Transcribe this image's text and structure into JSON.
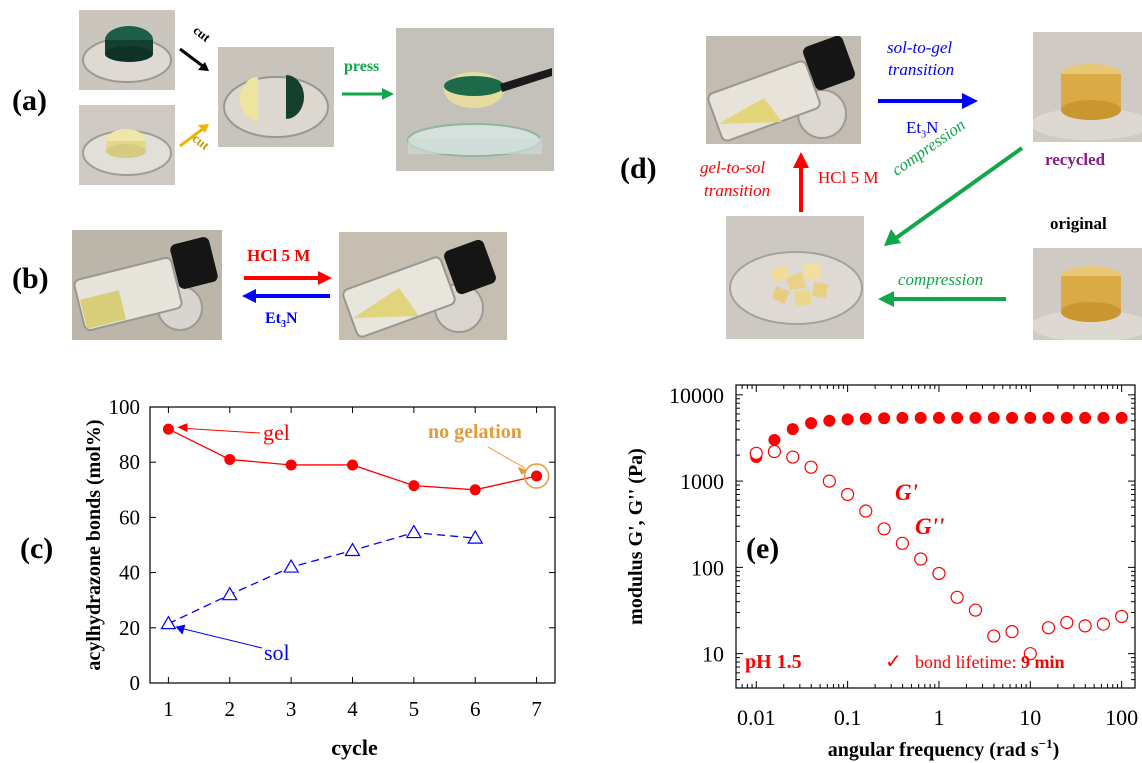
{
  "panels": {
    "a": {
      "label": "(a)",
      "cut_top": "cut",
      "cut_bottom": "cut",
      "press": "press",
      "colors": {
        "cut_top": "#000000",
        "cut_bottom": "#f0b400",
        "press": "#12a64a"
      }
    },
    "b": {
      "label": "(b)",
      "forward": "HCl 5 M",
      "reverse_prefix": "Et",
      "reverse_sub": "3",
      "reverse_suffix": "N",
      "colors": {
        "forward": "#ff0000",
        "reverse": "#0000ff"
      }
    },
    "d": {
      "label": "(d)",
      "sol_to_gel_1": "sol-to-gel",
      "sol_to_gel_2": "transition",
      "et3n_prefix": "Et",
      "et3n_sub": "3",
      "et3n_suffix": "N",
      "recycled": "recycled",
      "original": "original",
      "gel_to_sol_1": "gel-to-sol",
      "gel_to_sol_2": "transition",
      "hcl": "HCl 5 M",
      "compression_diag": "compression",
      "compression_bottom": "compression",
      "colors": {
        "blue": "#0000ff",
        "red": "#ff0000",
        "green": "#12a64a",
        "recycled": "#8b1a8b"
      }
    }
  },
  "chart_data": [
    {
      "panel_label": "(c)",
      "type": "line",
      "xlabel": "cycle",
      "ylabel": "acylhydrazone bonds (mol%)",
      "xlim": [
        0.7,
        7.3
      ],
      "ylim": [
        0,
        100
      ],
      "x_ticks": [
        "1",
        "2",
        "3",
        "4",
        "5",
        "6",
        "7"
      ],
      "y_ticks": [
        "0",
        "20",
        "40",
        "60",
        "80",
        "100"
      ],
      "grid": false,
      "series": [
        {
          "name": "gel",
          "color": "#ff0000",
          "marker": "filled-circle",
          "line": "solid",
          "x": [
            1,
            2,
            3,
            4,
            5,
            6,
            7
          ],
          "y": [
            92,
            81,
            79,
            79,
            71.5,
            70,
            75
          ]
        },
        {
          "name": "sol",
          "color": "#0000ff",
          "marker": "open-triangle",
          "line": "dashed",
          "x": [
            1,
            2,
            3,
            4,
            5,
            6
          ],
          "y": [
            21.5,
            32,
            42,
            48,
            54.5,
            52.5
          ]
        }
      ],
      "annotations": {
        "gel": "gel",
        "sol": "sol",
        "no_gelation": "no gelation",
        "no_gelation_color": "#e69a3a"
      }
    },
    {
      "panel_label": "(e)",
      "type": "scatter",
      "xlabel": "angular frequency (rad s",
      "xlabel_sup": "−1",
      "xlabel_end": ")",
      "ylabel": "modulus G', G'' (Pa)",
      "xscale": "log",
      "yscale": "log",
      "xlim": [
        0.006,
        140
      ],
      "ylim": [
        4,
        13000
      ],
      "x_ticks": [
        "0.01",
        "0.1",
        "1",
        "10",
        "100"
      ],
      "y_ticks": [
        "10",
        "100",
        "1000",
        "10000"
      ],
      "grid": false,
      "series": [
        {
          "name": "G'",
          "color": "#ff0000",
          "marker": "filled-circle",
          "x": [
            0.01,
            0.0158,
            0.0251,
            0.0398,
            0.0631,
            0.1,
            0.158,
            0.251,
            0.398,
            0.631,
            1,
            1.58,
            2.51,
            3.98,
            6.31,
            10,
            15.8,
            25.1,
            39.8,
            63.1,
            100
          ],
          "y": [
            1900,
            3000,
            4000,
            4700,
            5000,
            5200,
            5300,
            5350,
            5400,
            5400,
            5400,
            5400,
            5400,
            5400,
            5400,
            5400,
            5400,
            5400,
            5400,
            5400,
            5400
          ]
        },
        {
          "name": "G''",
          "color": "#ff0000",
          "marker": "open-circle",
          "x": [
            0.01,
            0.0158,
            0.0251,
            0.0398,
            0.0631,
            0.1,
            0.158,
            0.251,
            0.398,
            0.631,
            1,
            1.58,
            2.51,
            3.98,
            6.31,
            10,
            15.8,
            25.1,
            39.8,
            63.1,
            100
          ],
          "y": [
            2100,
            2200,
            1900,
            1450,
            1000,
            700,
            450,
            280,
            190,
            125,
            85,
            45,
            32,
            16,
            18,
            10,
            20,
            23,
            21,
            22,
            27
          ]
        }
      ],
      "annotations": {
        "g_prime": "G'",
        "g_double_prime": "G''",
        "ph": "pH 1.5",
        "check": "✓",
        "lifetime_prefix": "bond lifetime: ",
        "lifetime_value": "9 min"
      }
    }
  ]
}
